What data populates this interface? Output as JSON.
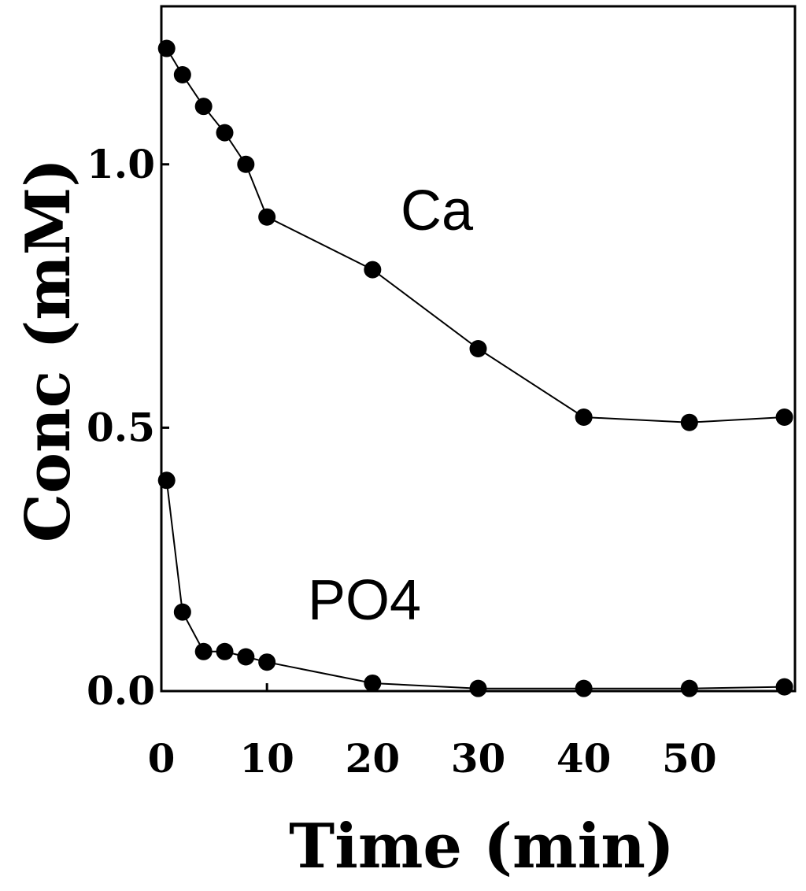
{
  "chart_data": {
    "type": "line",
    "xlabel": "Time (min)",
    "ylabel": "Conc (mM)",
    "xlim": [
      0,
      60
    ],
    "ylim": [
      0,
      1.3
    ],
    "x_ticks": [
      "0",
      "10",
      "20",
      "30",
      "40",
      "50"
    ],
    "x_tick_values": [
      0,
      10,
      20,
      30,
      40,
      50
    ],
    "y_ticks": [
      "0.0",
      "0.5",
      "1.0"
    ],
    "y_tick_values": [
      0.0,
      0.5,
      1.0
    ],
    "grid": false,
    "legend": "none",
    "series": [
      {
        "name": "Ca",
        "color": "#000000",
        "points": [
          {
            "x": 0.5,
            "y": 1.22
          },
          {
            "x": 2,
            "y": 1.17
          },
          {
            "x": 4,
            "y": 1.11
          },
          {
            "x": 6,
            "y": 1.06
          },
          {
            "x": 8,
            "y": 1.0
          },
          {
            "x": 10,
            "y": 0.9
          },
          {
            "x": 20,
            "y": 0.8
          },
          {
            "x": 30,
            "y": 0.65
          },
          {
            "x": 40,
            "y": 0.52
          },
          {
            "x": 50,
            "y": 0.51
          },
          {
            "x": 59,
            "y": 0.52
          }
        ]
      },
      {
        "name": "PO4",
        "color": "#000000",
        "points": [
          {
            "x": 0.5,
            "y": 0.4
          },
          {
            "x": 2,
            "y": 0.15
          },
          {
            "x": 4,
            "y": 0.075
          },
          {
            "x": 6,
            "y": 0.075
          },
          {
            "x": 8,
            "y": 0.065
          },
          {
            "x": 10,
            "y": 0.055
          },
          {
            "x": 20,
            "y": 0.015
          },
          {
            "x": 30,
            "y": 0.005
          },
          {
            "x": 40,
            "y": 0.005
          },
          {
            "x": 50,
            "y": 0.005
          },
          {
            "x": 59,
            "y": 0.008
          }
        ]
      }
    ]
  }
}
